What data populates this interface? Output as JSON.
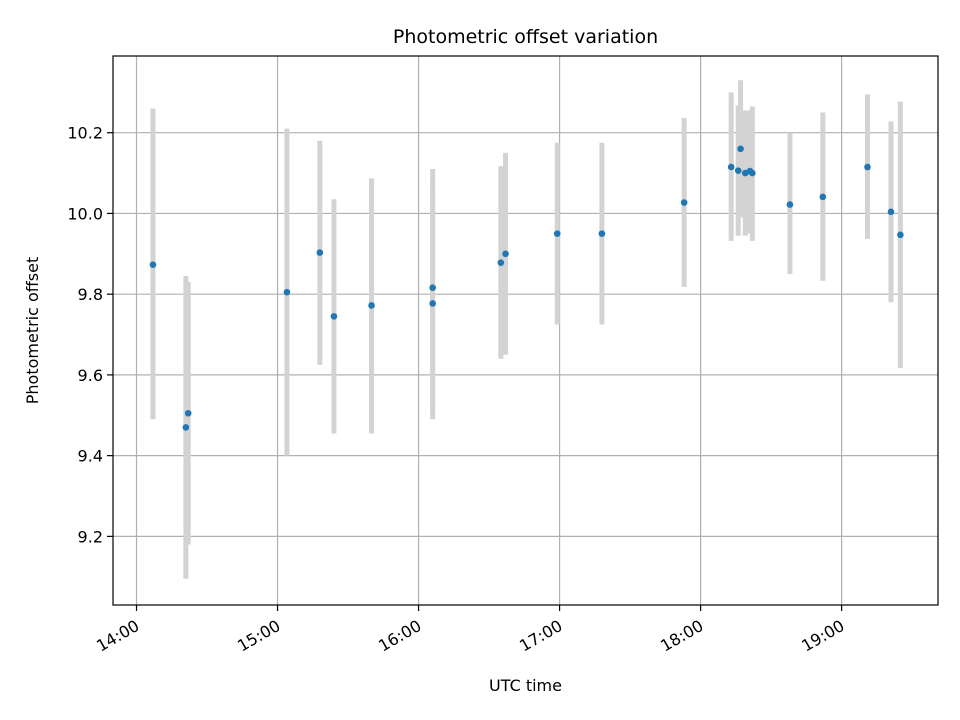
{
  "chart_data": {
    "type": "scatter",
    "title": "Photometric offset variation",
    "xlabel": "UTC time",
    "ylabel": "Photometric offset",
    "xlim": [
      "13:50",
      "19:41"
    ],
    "ylim": [
      9.03,
      10.39
    ],
    "x_ticks": [
      "14:00",
      "15:00",
      "16:00",
      "17:00",
      "18:00",
      "19:00"
    ],
    "y_ticks": [
      9.2,
      9.4,
      9.6,
      9.8,
      10.0,
      10.2
    ],
    "grid": true,
    "errorbar_color": "#d3d3d3",
    "marker_color": "#1f77b4",
    "points": [
      {
        "x": "14:07",
        "y": 9.873,
        "ylow": 9.49,
        "yhigh": 10.26
      },
      {
        "x": "14:21",
        "y": 9.47,
        "ylow": 9.095,
        "yhigh": 9.845
      },
      {
        "x": "14:22",
        "y": 9.505,
        "ylow": 9.18,
        "yhigh": 9.83
      },
      {
        "x": "15:04",
        "y": 9.805,
        "ylow": 9.4,
        "yhigh": 10.21
      },
      {
        "x": "15:18",
        "y": 9.903,
        "ylow": 9.625,
        "yhigh": 10.18
      },
      {
        "x": "15:24",
        "y": 9.745,
        "ylow": 9.455,
        "yhigh": 10.035
      },
      {
        "x": "15:40",
        "y": 9.772,
        "ylow": 9.455,
        "yhigh": 10.087
      },
      {
        "x": "16:06",
        "y": 9.816,
        "ylow": 9.52,
        "yhigh": 10.11
      },
      {
        "x": "16:06",
        "y": 9.777,
        "ylow": 9.49,
        "yhigh": 10.06
      },
      {
        "x": "16:35",
        "y": 9.878,
        "ylow": 9.64,
        "yhigh": 10.117
      },
      {
        "x": "16:37",
        "y": 9.9,
        "ylow": 9.65,
        "yhigh": 10.15
      },
      {
        "x": "16:59",
        "y": 9.95,
        "ylow": 9.725,
        "yhigh": 10.175
      },
      {
        "x": "17:18",
        "y": 9.95,
        "ylow": 9.725,
        "yhigh": 10.175
      },
      {
        "x": "17:53",
        "y": 10.027,
        "ylow": 9.818,
        "yhigh": 10.236
      },
      {
        "x": "18:13",
        "y": 10.115,
        "ylow": 9.932,
        "yhigh": 10.3
      },
      {
        "x": "18:16",
        "y": 10.106,
        "ylow": 9.945,
        "yhigh": 10.267
      },
      {
        "x": "18:17",
        "y": 10.16,
        "ylow": 9.99,
        "yhigh": 10.33
      },
      {
        "x": "18:19",
        "y": 10.1,
        "ylow": 9.945,
        "yhigh": 10.255
      },
      {
        "x": "18:21",
        "y": 10.105,
        "ylow": 9.95,
        "yhigh": 10.255
      },
      {
        "x": "18:22",
        "y": 10.1,
        "ylow": 9.932,
        "yhigh": 10.265
      },
      {
        "x": "18:38",
        "y": 10.022,
        "ylow": 9.85,
        "yhigh": 10.2
      },
      {
        "x": "18:52",
        "y": 10.041,
        "ylow": 9.833,
        "yhigh": 10.25
      },
      {
        "x": "19:11",
        "y": 10.115,
        "ylow": 9.937,
        "yhigh": 10.295
      },
      {
        "x": "19:21",
        "y": 10.004,
        "ylow": 9.78,
        "yhigh": 10.228
      },
      {
        "x": "19:25",
        "y": 9.947,
        "ylow": 9.617,
        "yhigh": 10.277
      }
    ]
  }
}
